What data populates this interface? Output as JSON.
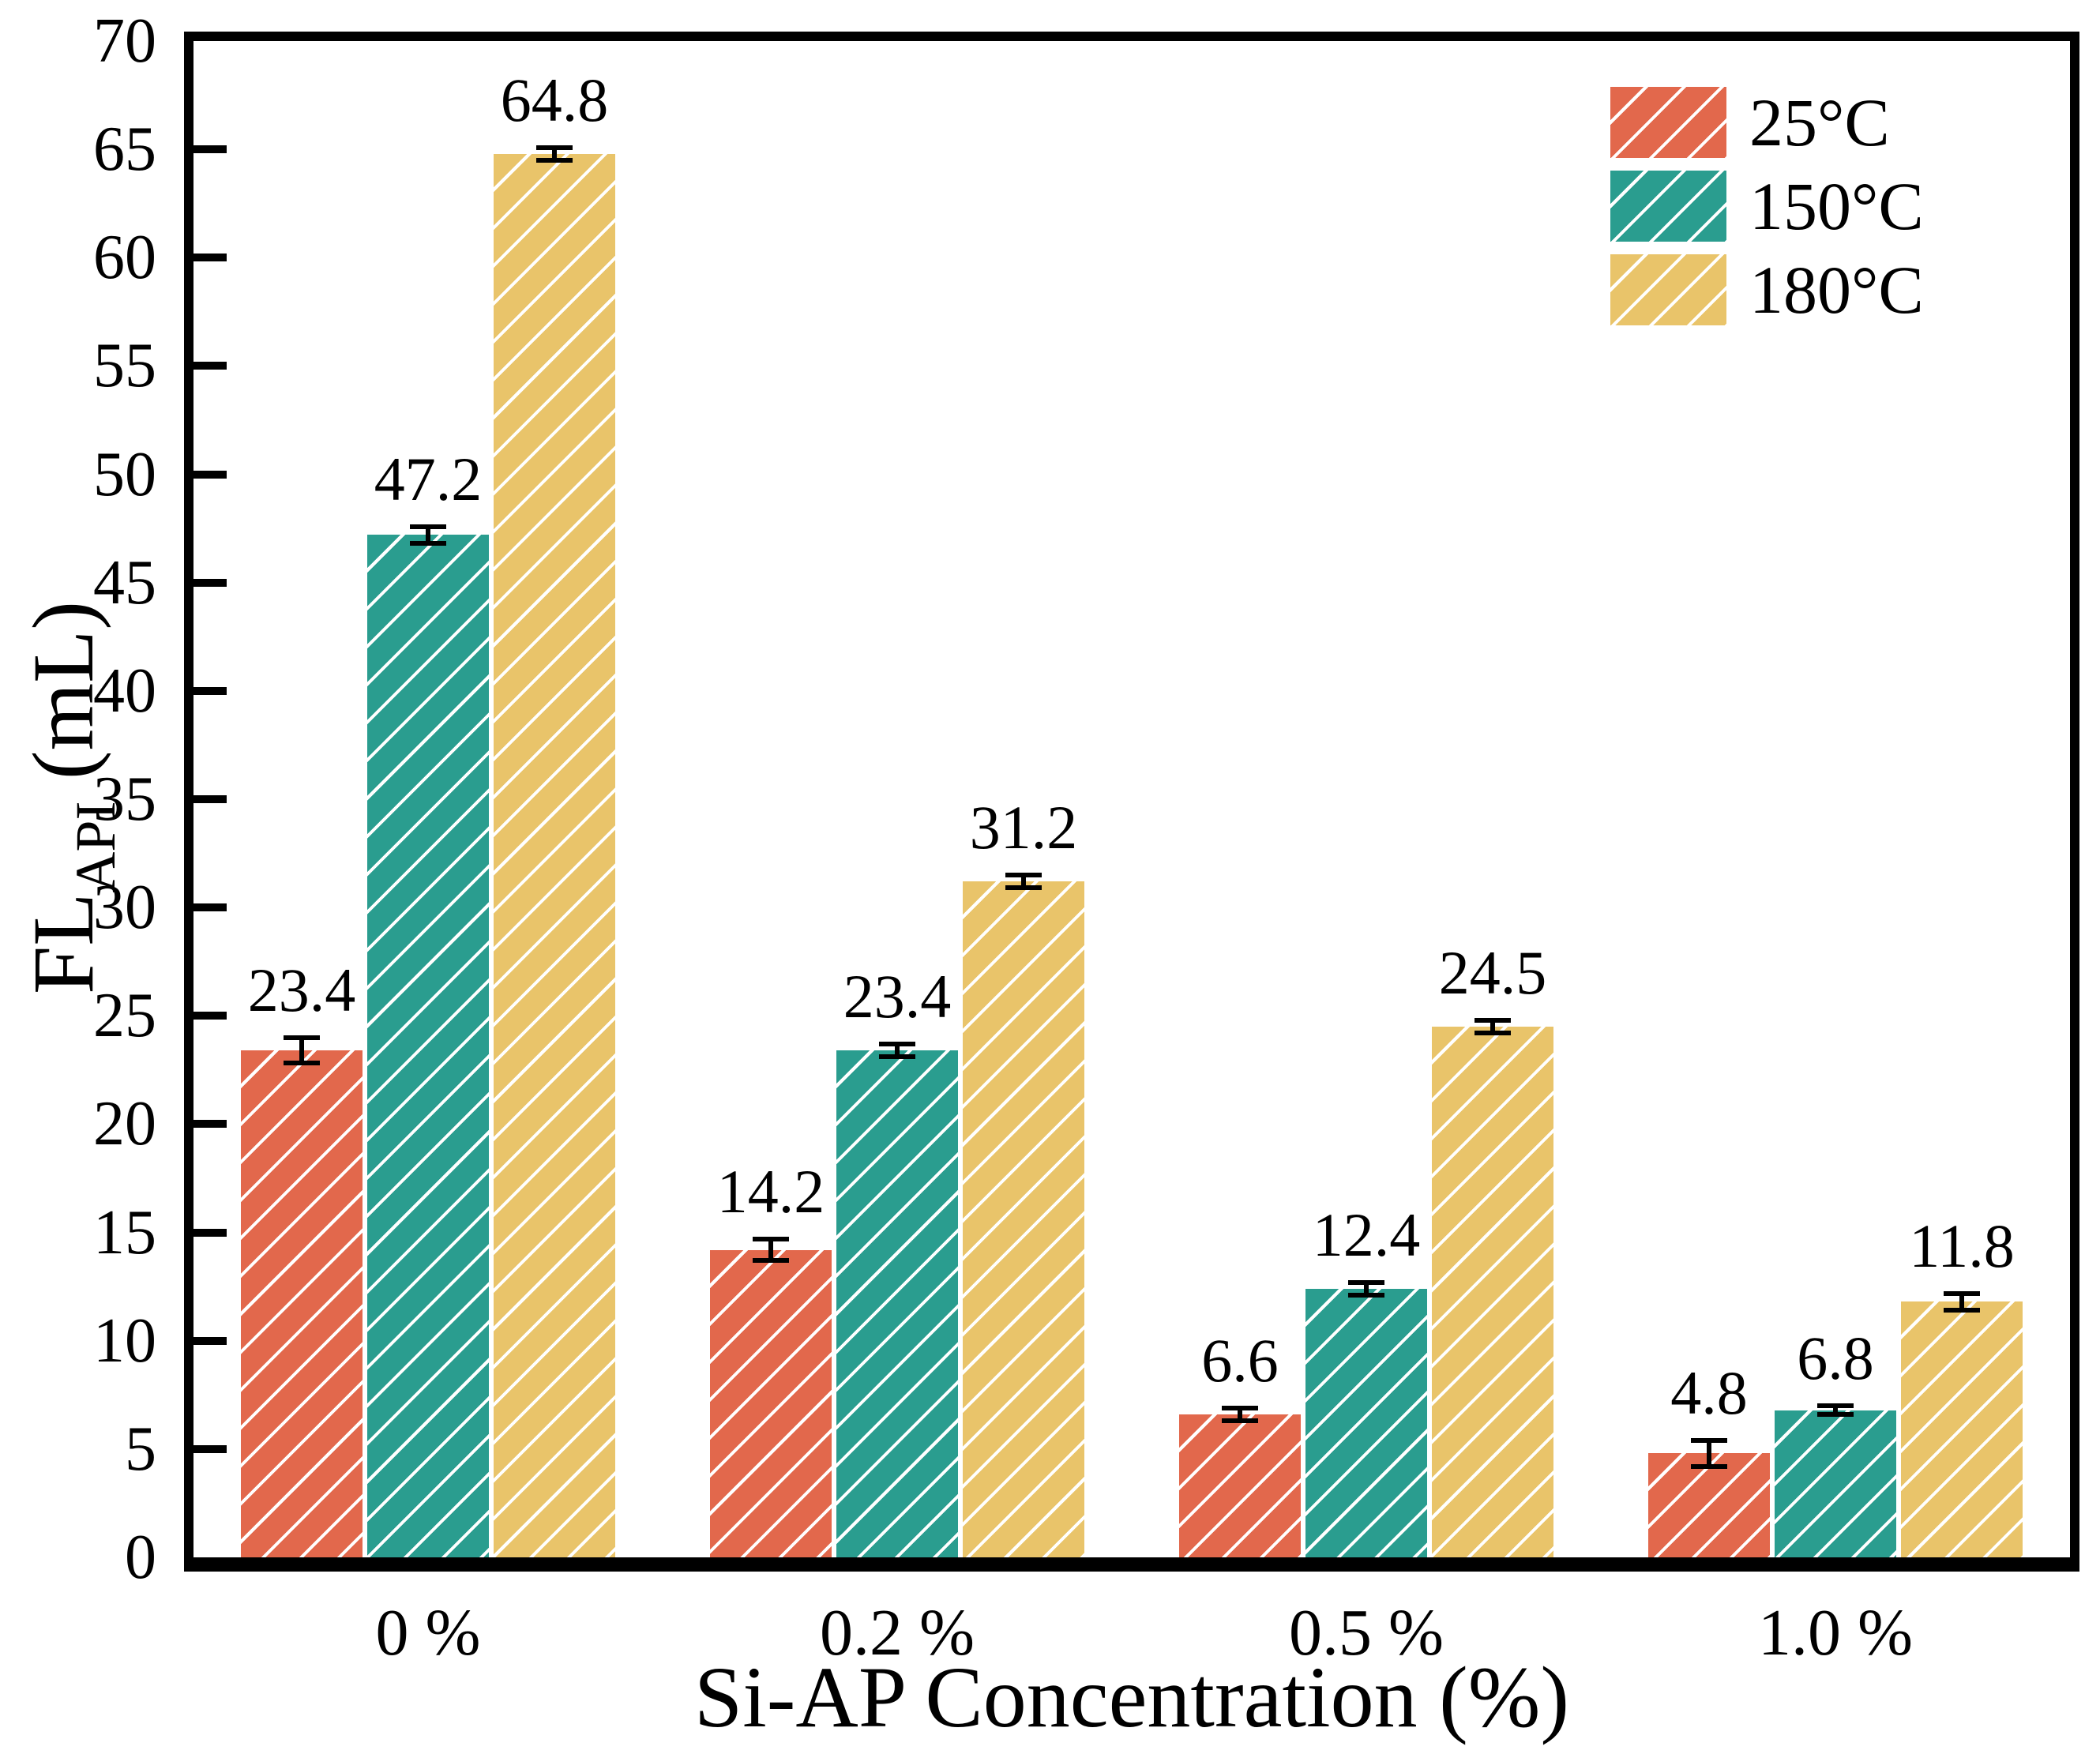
{
  "chart_data": {
    "type": "bar",
    "title": "",
    "xlabel": "Si-AP Concentration (%)",
    "ylabel": {
      "main": "FL",
      "sub": "API",
      "unit": " (mL)"
    },
    "categories": [
      "0 %",
      "0.2 %",
      "0.5 %",
      "1.0 %"
    ],
    "series": [
      {
        "name": "25°C",
        "color": "#E2684C",
        "values": [
          23.4,
          14.2,
          6.6,
          4.8
        ],
        "errors": [
          0.7,
          0.6,
          0.4,
          0.7
        ]
      },
      {
        "name": "150°C",
        "color": "#2A9D8F",
        "values": [
          47.2,
          23.4,
          12.4,
          6.8
        ],
        "errors": [
          0.5,
          0.4,
          0.4,
          0.3
        ]
      },
      {
        "name": "180°C",
        "color": "#E9C46A",
        "values": [
          64.8,
          31.2,
          24.5,
          11.8
        ],
        "errors": [
          0.4,
          0.4,
          0.4,
          0.5
        ]
      }
    ],
    "ylim": [
      0,
      70
    ],
    "y_ticks": [
      0,
      5,
      10,
      15,
      20,
      25,
      30,
      35,
      40,
      45,
      50,
      55,
      60,
      65,
      70
    ],
    "value_label_decimals": 1,
    "hatch": "/",
    "hatch_color": "#ffffff",
    "frame_color": "#000000",
    "errorbar_color": "#000000",
    "legend_position": "top-right",
    "grid": "off"
  }
}
